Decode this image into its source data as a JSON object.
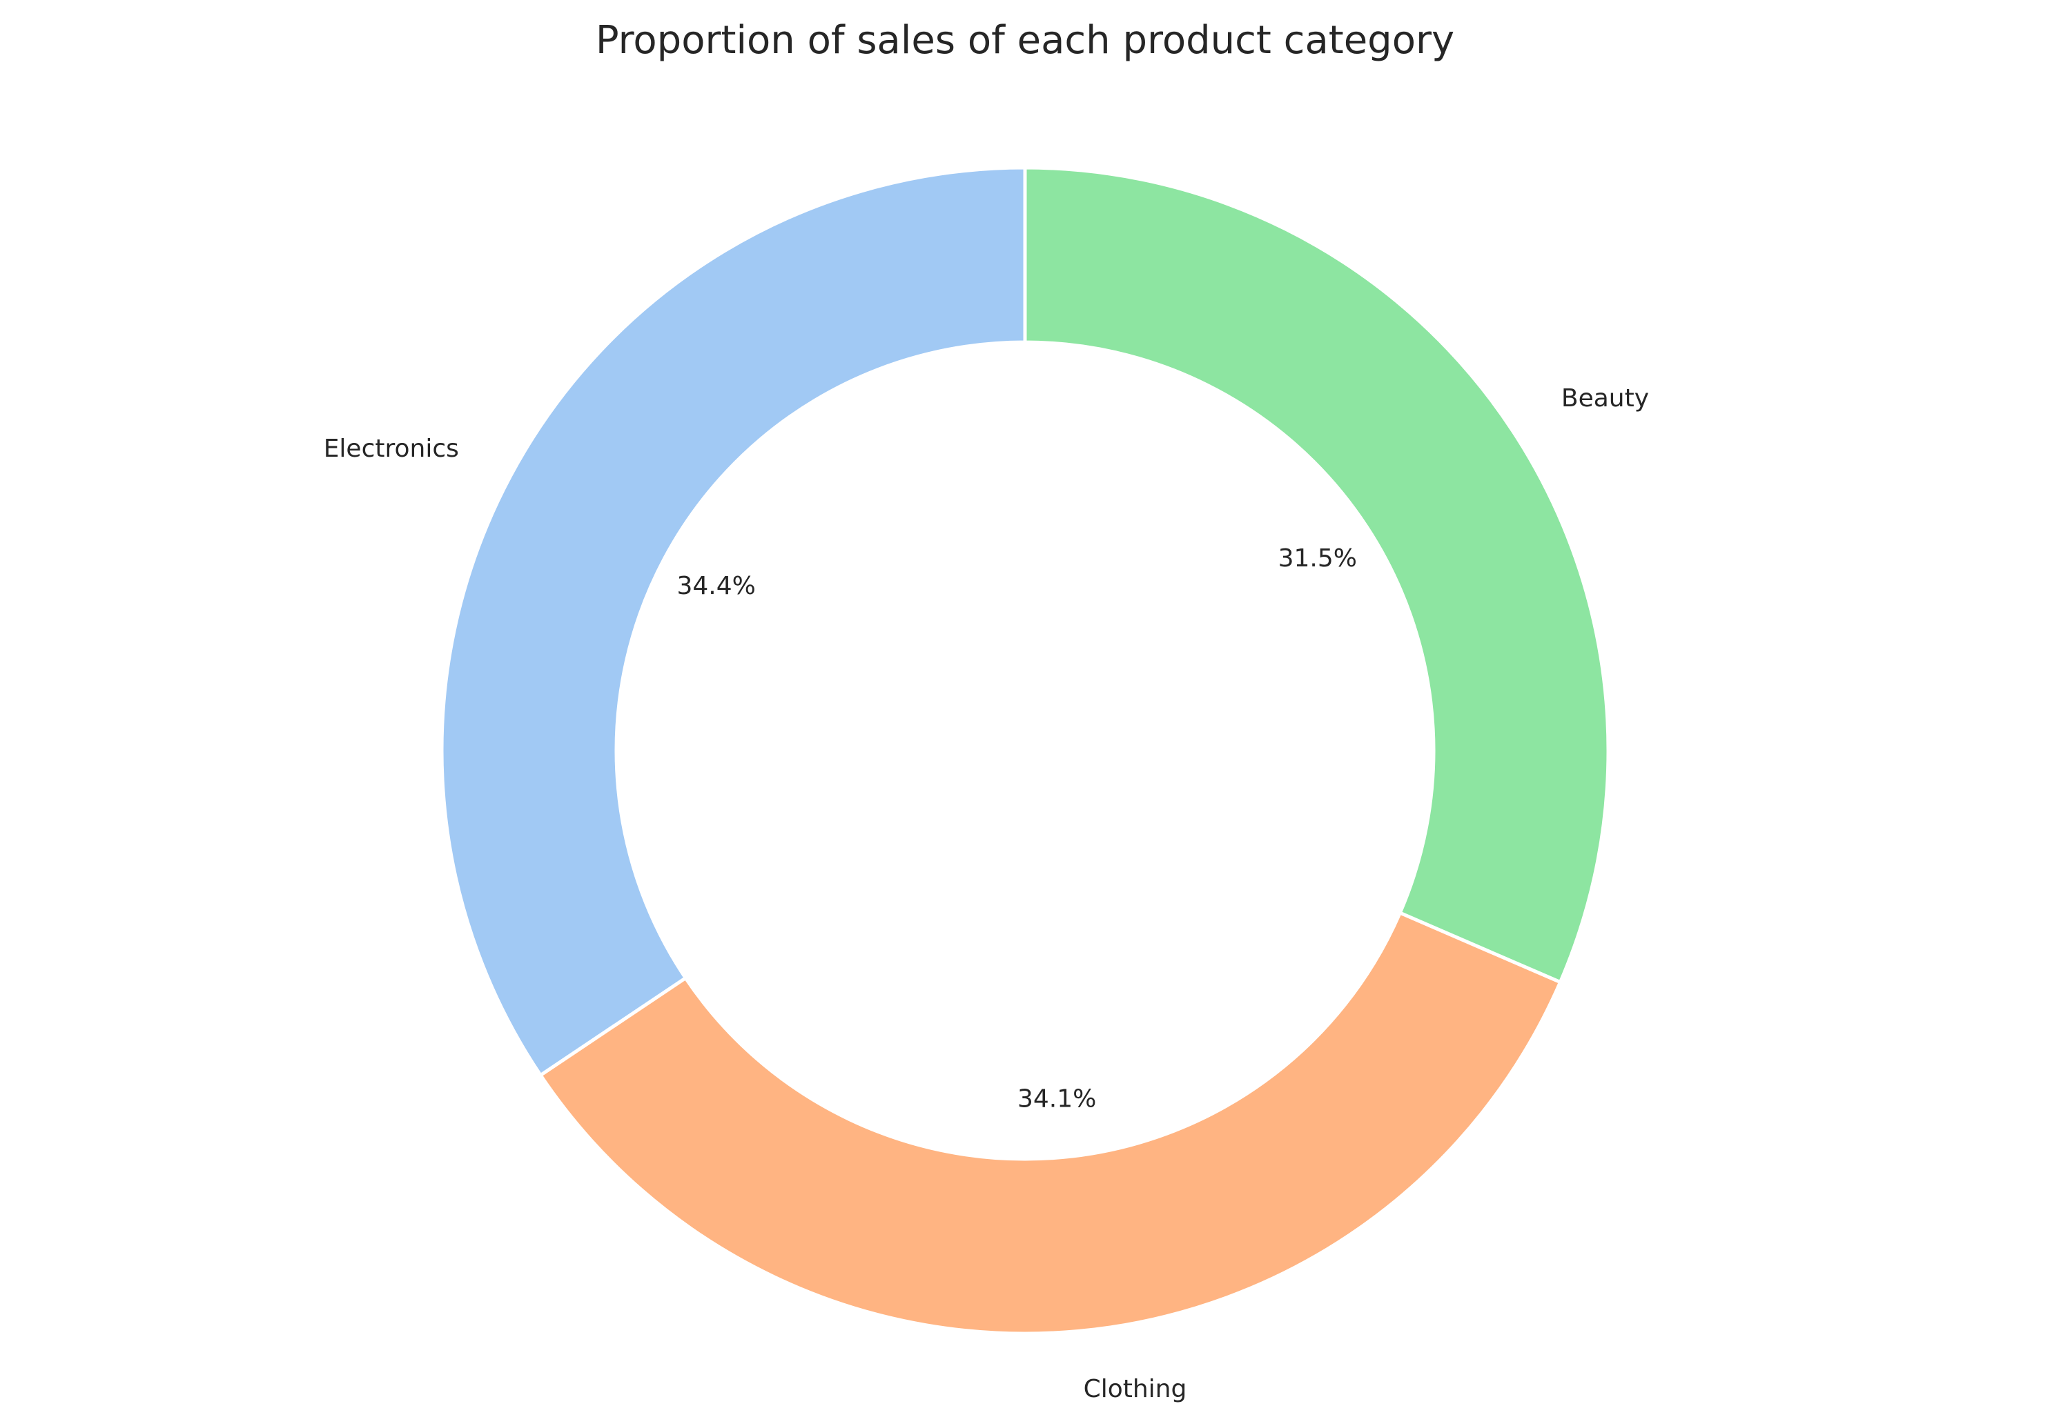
{
  "chart_data": {
    "type": "pie",
    "title": "Proportion of sales of each product category",
    "donut": true,
    "start_angle_deg": 90,
    "direction": "counterclockwise",
    "categories": [
      "Electronics",
      "Clothing",
      "Beauty"
    ],
    "values": [
      34.4,
      34.1,
      31.5
    ],
    "value_labels": [
      "34.4%",
      "34.1%",
      "31.5%"
    ],
    "colors": [
      "#a1c9f4",
      "#ffb482",
      "#8de5a1"
    ],
    "slice_edge_color": "#ffffff",
    "legend": "none"
  }
}
